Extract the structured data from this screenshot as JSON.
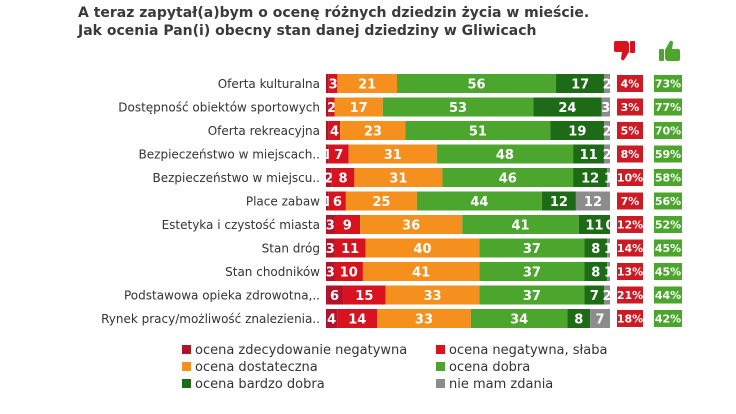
{
  "title": "A teraz zapytał(a)bym o ocenę różnych dziedzin życia w mieście. Jak ocenia Pan(i) obecny stan danej dziedziny w Gliwicach",
  "icons": {
    "negative": "thumbs-down-icon",
    "positive": "thumbs-up-icon"
  },
  "colors": {
    "zdecydowanie_negatywna": "#b0132a",
    "negatywna": "#d9121f",
    "dostateczna": "#f5901e",
    "dobra": "#4ca62e",
    "bardzo_dobra": "#1d6b16",
    "nie_mam_zdania": "#8c8c8c",
    "neg_box": "#cc1b24",
    "pos_box": "#4ca62e"
  },
  "legend": [
    {
      "label": "ocena zdecydowanie negatywna",
      "color": "#b0132a"
    },
    {
      "label": "ocena negatywna, słaba",
      "color": "#d9121f"
    },
    {
      "label": "ocena dostateczna",
      "color": "#f5901e"
    },
    {
      "label": "ocena dobra",
      "color": "#4ca62e"
    },
    {
      "label": "ocena bardzo dobra",
      "color": "#1d6b16"
    },
    {
      "label": "nie mam zdania",
      "color": "#8c8c8c"
    }
  ],
  "chart_data": {
    "type": "bar",
    "orientation": "horizontal-stacked-100",
    "categories": [
      "Oferta kulturalna",
      "Dostępność obiektów sportowych",
      "Oferta rekreacyjna",
      "Bezpieczeństwo w miejscach..",
      "Bezpieczeństwo w miejscu..",
      "Place zabaw",
      "Estetyka i czystość miasta",
      "Stan dróg",
      "Stan chodników",
      "Podstawowa opieka zdrowotna,..",
      "Rynek pracy/możliwość znalezienia.."
    ],
    "series": [
      {
        "name": "ocena zdecydowanie negatywna",
        "values": [
          1,
          1,
          1,
          1,
          2,
          1,
          3,
          3,
          3,
          6,
          4
        ]
      },
      {
        "name": "ocena negatywna, słaba",
        "values": [
          3,
          2,
          4,
          7,
          8,
          6,
          9,
          11,
          10,
          15,
          14
        ]
      },
      {
        "name": "ocena dostateczna",
        "values": [
          21,
          17,
          23,
          31,
          31,
          25,
          36,
          40,
          41,
          33,
          33
        ]
      },
      {
        "name": "ocena dobra",
        "values": [
          56,
          53,
          51,
          48,
          46,
          44,
          41,
          37,
          37,
          37,
          34
        ]
      },
      {
        "name": "ocena bardzo dobra",
        "values": [
          17,
          24,
          19,
          11,
          12,
          12,
          11,
          8,
          8,
          7,
          8
        ]
      },
      {
        "name": "nie mam zdania",
        "values": [
          2,
          3,
          2,
          2,
          1,
          12,
          0,
          1,
          1,
          2,
          7
        ]
      }
    ],
    "labels": [
      [
        "",
        "3",
        "21",
        "56",
        "17",
        "2"
      ],
      [
        "",
        "2",
        "17",
        "53",
        "24",
        "3"
      ],
      [
        "",
        "4",
        "23",
        "51",
        "19",
        "2"
      ],
      [
        "1",
        "7",
        "31",
        "48",
        "11",
        "2"
      ],
      [
        "2",
        "8",
        "31",
        "46",
        "12",
        "1"
      ],
      [
        "1",
        "6",
        "25",
        "44",
        "12",
        "12"
      ],
      [
        "3",
        "9",
        "36",
        "41",
        "11",
        "0"
      ],
      [
        "3",
        "11",
        "40",
        "37",
        "8",
        "1"
      ],
      [
        "3",
        "10",
        "41",
        "37",
        "8",
        "1"
      ],
      [
        "6",
        "15",
        "33",
        "37",
        "7",
        "2"
      ],
      [
        "4",
        "14",
        "33",
        "34",
        "8",
        "7"
      ]
    ],
    "negative_total": [
      "4%",
      "3%",
      "5%",
      "8%",
      "10%",
      "7%",
      "12%",
      "14%",
      "13%",
      "21%",
      "18%"
    ],
    "positive_total": [
      "73%",
      "77%",
      "70%",
      "59%",
      "58%",
      "56%",
      "52%",
      "45%",
      "45%",
      "44%",
      "42%"
    ],
    "xlim": [
      0,
      100
    ],
    "legend_position": "bottom"
  }
}
